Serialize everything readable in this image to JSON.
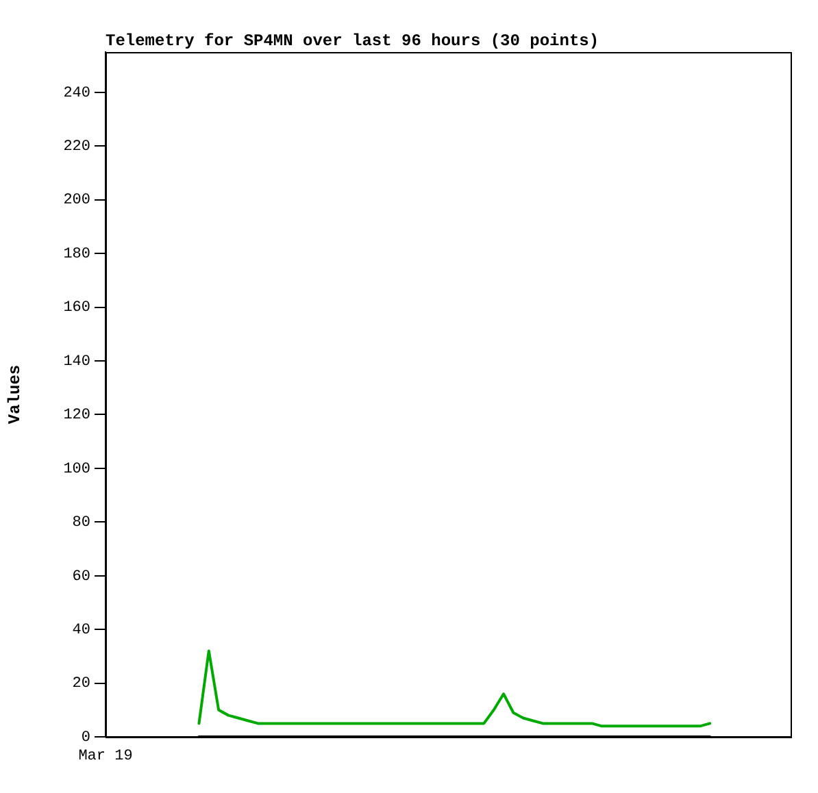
{
  "chart_data": {
    "type": "line",
    "title": "Telemetry for SP4MN over last 96 hours (30 points)",
    "ylabel": "Values",
    "categories": [
      null,
      null,
      null,
      null,
      null,
      null,
      null,
      null,
      null,
      null,
      null,
      null,
      null,
      null,
      null,
      null,
      null,
      null,
      null,
      null,
      null,
      null,
      null,
      null,
      null,
      null,
      null,
      null,
      null,
      null,
      null,
      null,
      null,
      null,
      null,
      null,
      null,
      null,
      null,
      null,
      null,
      null,
      null,
      null,
      null,
      null,
      null,
      null,
      null,
      null,
      null,
      null,
      null
    ],
    "annotations": [
      "Mar 19"
    ],
    "ylim": [
      0,
      255
    ],
    "yticks": [
      0,
      20,
      40,
      60,
      80,
      100,
      120,
      140,
      160,
      180,
      200,
      220,
      240
    ],
    "grid": false,
    "legend": false,
    "marker": "none",
    "line_style": "solid",
    "series": [
      {
        "color": "#000000",
        "values": [
          0,
          0,
          0,
          0,
          0,
          0,
          0,
          0,
          0,
          0,
          0,
          0,
          0,
          0,
          0,
          0,
          0,
          0,
          0,
          0,
          0,
          0,
          0,
          0,
          0,
          0,
          0,
          0,
          0,
          0,
          0,
          0,
          0,
          0,
          0,
          0,
          0,
          0,
          0,
          0,
          0,
          0,
          0,
          0,
          0,
          0,
          0,
          0,
          0,
          0,
          0,
          0,
          0
        ]
      },
      {
        "color": "#00aa00",
        "values": [
          5,
          32,
          10,
          8,
          7,
          6,
          5,
          5,
          5,
          5,
          5,
          5,
          5,
          5,
          5,
          5,
          5,
          5,
          5,
          5,
          5,
          5,
          5,
          5,
          5,
          5,
          5,
          5,
          5,
          5,
          10,
          16,
          9,
          7,
          6,
          5,
          5,
          5,
          5,
          5,
          5,
          4,
          4,
          4,
          4,
          4,
          4,
          4,
          4,
          4,
          4,
          4,
          5
        ]
      }
    ]
  }
}
